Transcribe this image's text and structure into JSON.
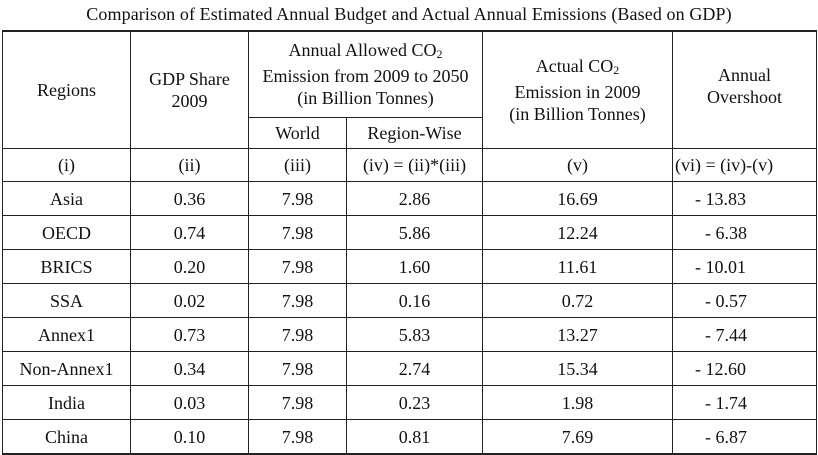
{
  "caption": "Comparison of Estimated Annual Budget and Actual Annual Emissions (Based on GDP)",
  "headers": {
    "regions": "Regions",
    "gdp_share_line1": "GDP Share",
    "gdp_share_line2": "2009",
    "allowed_line1_prefix": "Annual Allowed CO",
    "allowed_line1_sub": "2",
    "allowed_line2": "Emission from 2009 to 2050",
    "allowed_line3": "(in Billion Tonnes)",
    "world": "World",
    "region_wise": "Region-Wise",
    "actual_line1_prefix": "Actual CO",
    "actual_line1_sub": "2",
    "actual_line2": "Emission in 2009",
    "actual_line3": "(in Billion Tonnes)",
    "overshoot_line1": "Annual",
    "overshoot_line2": "Overshoot"
  },
  "index_row": [
    "(i)",
    "(ii)",
    "(iii)",
    "(iv) = (ii)*(iii)",
    "(v)",
    "(vi) = (iv)-(v)"
  ],
  "rows": [
    {
      "region": "Asia",
      "gdp_share": "0.36",
      "world": "7.98",
      "region_wise": "2.86",
      "actual": "16.69",
      "overshoot": "- 13.83"
    },
    {
      "region": "OECD",
      "gdp_share": "0.74",
      "world": "7.98",
      "region_wise": "5.86",
      "actual": "12.24",
      "overshoot": "- 6.38"
    },
    {
      "region": "BRICS",
      "gdp_share": "0.20",
      "world": "7.98",
      "region_wise": "1.60",
      "actual": "11.61",
      "overshoot": "- 10.01"
    },
    {
      "region": "SSA",
      "gdp_share": "0.02",
      "world": "7.98",
      "region_wise": "0.16",
      "actual": "0.72",
      "overshoot": "- 0.57"
    },
    {
      "region": "Annex1",
      "gdp_share": "0.73",
      "world": "7.98",
      "region_wise": "5.83",
      "actual": "13.27",
      "overshoot": "- 7.44"
    },
    {
      "region": "Non-Annex1",
      "gdp_share": "0.34",
      "world": "7.98",
      "region_wise": "2.74",
      "actual": "15.34",
      "overshoot": "- 12.60"
    },
    {
      "region": "India",
      "gdp_share": "0.03",
      "world": "7.98",
      "region_wise": "0.23",
      "actual": "1.98",
      "overshoot": "- 1.74"
    },
    {
      "region": "China",
      "gdp_share": "0.10",
      "world": "7.98",
      "region_wise": "0.81",
      "actual": "7.69",
      "overshoot": "- 6.87"
    }
  ]
}
